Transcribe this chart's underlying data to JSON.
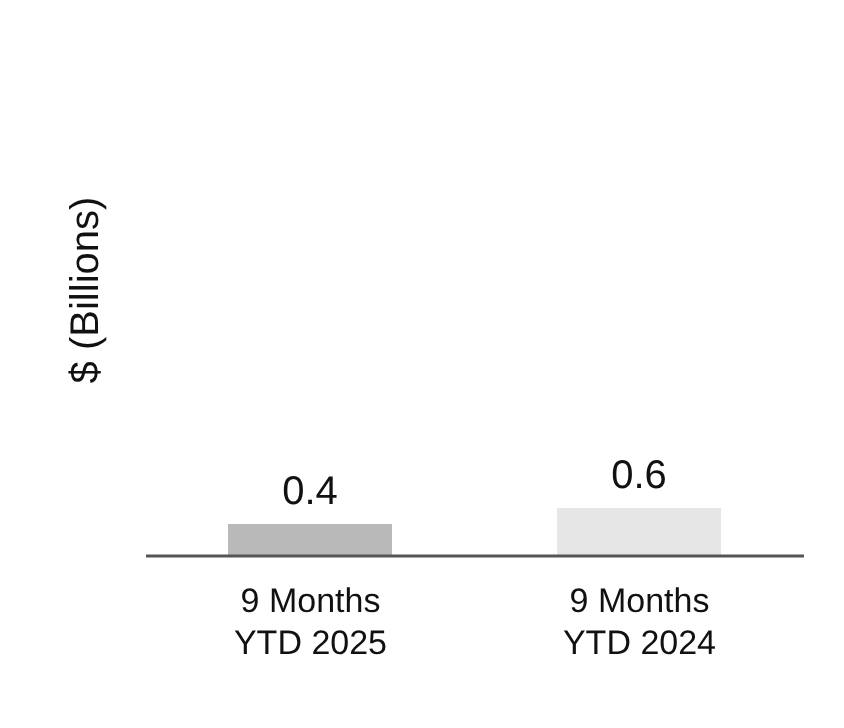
{
  "chart_data": {
    "type": "bar",
    "ylabel": "$ (Billions)",
    "categories": [
      "9 Months YTD 2025",
      "9 Months YTD 2024"
    ],
    "values": [
      0.4,
      0.6
    ],
    "colors": [
      "#b9b9b9",
      "#e6e6e6"
    ],
    "data_labels": true,
    "grid": false,
    "legend": false
  }
}
